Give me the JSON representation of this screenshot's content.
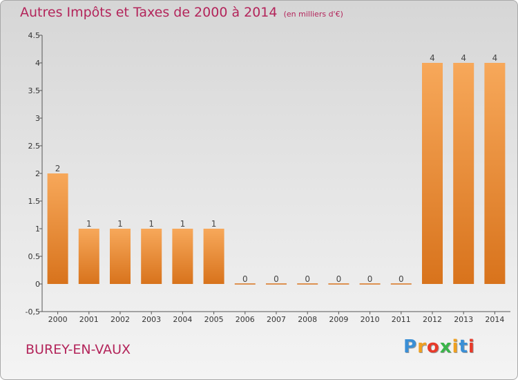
{
  "title": "Autres Impôts et Taxes de 2000 à 2014",
  "unit_note": "(en milliers d'€)",
  "town": "BUREY-EN-VAUX",
  "logo": {
    "letters": [
      "P",
      "r",
      "o",
      "x",
      "i",
      "t",
      "i"
    ],
    "colors": [
      "#3a8fd6",
      "#f0a020",
      "#e83a2a",
      "#3ab54a",
      "#f0a020",
      "#3a8fd6",
      "#e83a2a"
    ]
  },
  "colors": {
    "bar_light": "#f7a85a",
    "bar_dark": "#d8731c",
    "title": "#b3245a"
  },
  "chart_data": {
    "type": "bar",
    "categories": [
      "2000",
      "2001",
      "2002",
      "2003",
      "2004",
      "2005",
      "2006",
      "2007",
      "2008",
      "2009",
      "2010",
      "2011",
      "2012",
      "2013",
      "2014"
    ],
    "values": [
      2,
      1,
      1,
      1,
      1,
      1,
      0,
      0,
      0,
      0,
      0,
      0,
      4,
      4,
      4
    ],
    "value_labels": [
      "2",
      "1",
      "1",
      "1",
      "1",
      "1",
      "0",
      "0",
      "0",
      "0",
      "0",
      "0",
      "4",
      "4",
      "4"
    ],
    "title": "Autres Impôts et Taxes de 2000 à 2014",
    "xlabel": "",
    "ylabel": "",
    "ylim": [
      -0.5,
      4.5
    ],
    "yticks": [
      -0.5,
      0,
      0.5,
      1,
      1.5,
      2,
      2.5,
      3,
      3.5,
      4,
      4.5
    ],
    "ytick_labels": [
      "-0,5",
      "0",
      "0.5",
      "1",
      "1.5",
      "2",
      "2.5",
      "3",
      "3.5",
      "4",
      "4.5"
    ],
    "grid": false,
    "legend": "none"
  }
}
